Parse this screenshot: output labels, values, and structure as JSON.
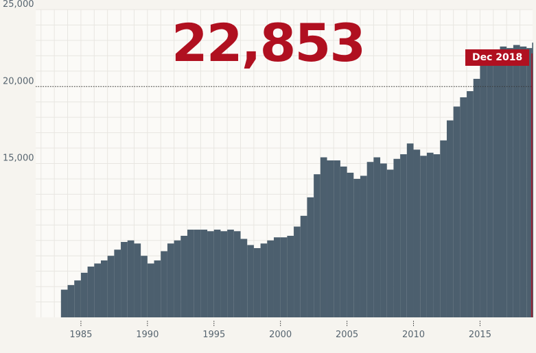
{
  "highlight": {
    "value_label": "22,853",
    "date_label": "Dec 2018"
  },
  "colors": {
    "bars": "#4c5f6e",
    "accent": "#b01020",
    "grid": "#e8e6e1",
    "axis_text": "#56646f"
  },
  "chart_data": {
    "type": "bar",
    "title": "",
    "xlabel": "",
    "ylabel": "",
    "ylim": [
      5000,
      25000
    ],
    "xlim": [
      1981.6,
      2018.95
    ],
    "y_ticks": [
      15000,
      20000,
      25000
    ],
    "y_tick_labels": [
      "15,000",
      "20,000",
      "25,000"
    ],
    "x_ticks": [
      1985,
      1990,
      1995,
      2000,
      2005,
      2010,
      2015
    ],
    "x_tick_labels": [
      "1985",
      "1990",
      "1995",
      "2000",
      "2005",
      "2010",
      "2015"
    ],
    "reference_line": 20000,
    "grid": true,
    "series": [
      {
        "x": [
          "1983-07",
          "1984-01",
          "1984-07",
          "1985-01",
          "1985-07",
          "1986-01",
          "1986-07",
          "1987-01",
          "1987-07",
          "1988-01",
          "1988-07",
          "1989-01",
          "1989-07",
          "1990-01",
          "1990-07",
          "1991-01",
          "1991-07",
          "1992-01",
          "1992-07",
          "1993-01",
          "1993-07",
          "1994-01",
          "1994-07",
          "1995-01",
          "1995-07",
          "1996-01",
          "1996-07",
          "1997-01",
          "1997-07",
          "1998-01",
          "1998-07",
          "1999-01",
          "1999-07",
          "2000-01",
          "2000-07",
          "2001-01",
          "2001-07",
          "2002-01",
          "2002-07",
          "2003-01",
          "2003-07",
          "2004-01",
          "2004-07",
          "2005-01",
          "2005-07",
          "2006-01",
          "2006-07",
          "2007-01",
          "2007-07",
          "2008-01",
          "2008-07",
          "2009-01",
          "2009-07",
          "2010-01",
          "2010-07",
          "2011-01",
          "2011-07",
          "2012-01",
          "2012-07",
          "2013-01",
          "2013-07",
          "2014-01",
          "2014-07",
          "2015-01",
          "2015-07",
          "2016-01",
          "2016-07",
          "2017-01",
          "2017-07",
          "2018-01",
          "2018-07",
          "2018-12"
        ],
        "values": [
          6800,
          7100,
          7400,
          7900,
          8300,
          8500,
          8700,
          9000,
          9400,
          9900,
          10000,
          9800,
          9000,
          8500,
          8700,
          9300,
          9800,
          10000,
          10300,
          10700,
          10700,
          10700,
          10600,
          10700,
          10600,
          10700,
          10600,
          10100,
          9700,
          9500,
          9800,
          10000,
          10200,
          10200,
          10300,
          10900,
          11600,
          12800,
          14300,
          15400,
          15200,
          15200,
          14800,
          14400,
          14000,
          14200,
          15100,
          15400,
          15000,
          14600,
          15300,
          15600,
          16300,
          15900,
          15500,
          15700,
          15600,
          16500,
          17800,
          18700,
          19300,
          19700,
          20500,
          21900,
          21600,
          22100,
          22600,
          22500,
          22700,
          22600,
          22500,
          22853
        ]
      }
    ]
  }
}
